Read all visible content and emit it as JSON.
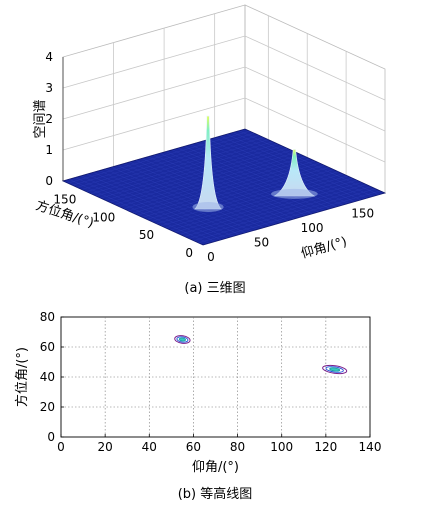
{
  "chart_data": [
    {
      "type": "surface3d",
      "caption": "(a) 三维图",
      "zlabel": "空间谱",
      "xlabel": "仰角/(°)",
      "ylabel": "方位角/(°)",
      "zticks": [
        "0",
        "1",
        "2",
        "3",
        "4"
      ],
      "xticks": [
        "0",
        "50",
        "100",
        "150"
      ],
      "yticks": [
        "0",
        "50",
        "100",
        "150"
      ],
      "zlim": [
        0,
        4
      ],
      "xlim": [
        0,
        180
      ],
      "ylim": [
        0,
        180
      ],
      "grid": true,
      "surface_color": "#1a2aa0",
      "peaks": [
        {
          "elevation": 55,
          "azimuth": 65,
          "height": 2.9
        },
        {
          "elevation": 125,
          "azimuth": 45,
          "height": 1.4
        }
      ]
    },
    {
      "type": "contour",
      "caption": "(b) 等高线图",
      "xlabel": "仰角/(°)",
      "ylabel": "方位角/(°)",
      "xlim": [
        0,
        140
      ],
      "ylim": [
        0,
        80
      ],
      "xticks": [
        "0",
        "20",
        "40",
        "60",
        "80",
        "100",
        "120",
        "140"
      ],
      "yticks": [
        "0",
        "20",
        "40",
        "60",
        "80"
      ],
      "grid": true,
      "contours": [
        {
          "center": [
            55,
            65
          ],
          "rx": 3.5,
          "ry": 2.5
        },
        {
          "center": [
            124,
            45
          ],
          "rx": 5.5,
          "ry": 2.5
        }
      ]
    }
  ]
}
